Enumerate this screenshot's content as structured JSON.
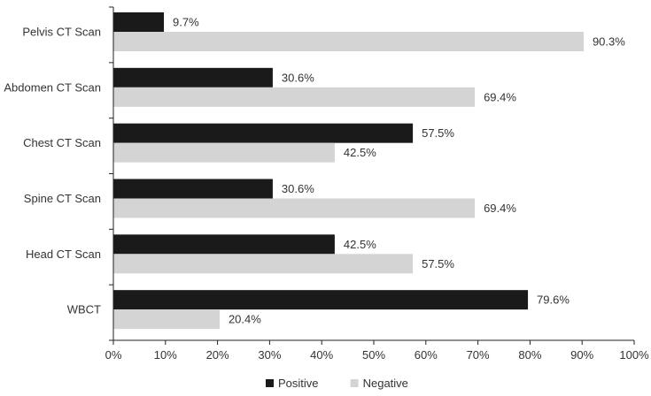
{
  "chart_data": {
    "type": "bar",
    "orientation": "horizontal",
    "categories": [
      "Pelvis CT Scan",
      "Abdomen CT Scan",
      "Chest CT Scan",
      "Spine CT Scan",
      "Head CT Scan",
      "WBCT"
    ],
    "series": [
      {
        "name": "Positive",
        "color": "#1a1a1a",
        "values": [
          9.7,
          30.6,
          57.5,
          30.6,
          42.5,
          79.6
        ],
        "labels": [
          "9.7%",
          "30.6%",
          "57.5%",
          "30.6%",
          "42.5%",
          "79.6%"
        ]
      },
      {
        "name": "Negative",
        "color": "#d4d4d4",
        "values": [
          90.3,
          69.4,
          42.5,
          69.4,
          57.5,
          20.4
        ],
        "labels": [
          "90.3%",
          "69.4%",
          "42.5%",
          "69.4%",
          "57.5%",
          "20.4%"
        ]
      }
    ],
    "x_ticks": [
      "0%",
      "10%",
      "20%",
      "30%",
      "40%",
      "50%",
      "60%",
      "70%",
      "80%",
      "90%",
      "100%"
    ],
    "xlim": [
      0,
      100
    ],
    "title": "",
    "xlabel": "",
    "ylabel": "",
    "grid": false,
    "legend_position": "bottom-center"
  }
}
